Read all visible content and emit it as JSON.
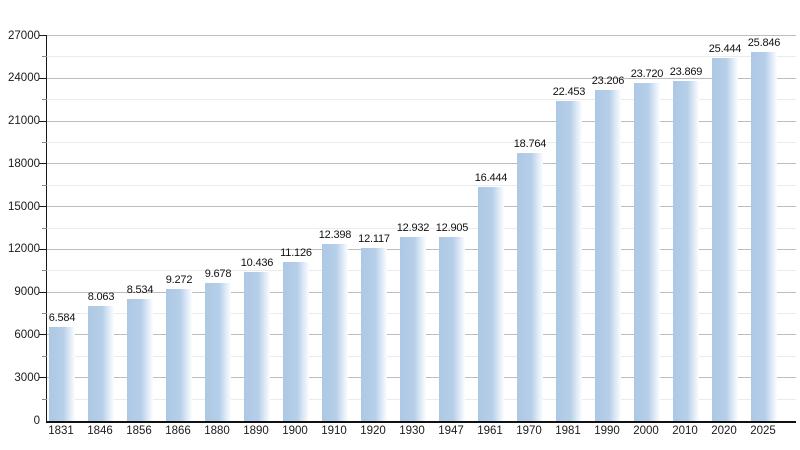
{
  "chart_data": {
    "type": "bar",
    "title": "",
    "xlabel": "",
    "ylabel": "",
    "legend": "none",
    "grid": "horizontal major every 3000, minor every 1500",
    "ylim": [
      0,
      27000
    ],
    "ytick_step": 3000,
    "ytick_labels": [
      "0",
      "3000",
      "6000",
      "9000",
      "12000",
      "15000",
      "18000",
      "21000",
      "24000",
      "27000"
    ],
    "categories": [
      "1831",
      "1846",
      "1856",
      "1866",
      "1880",
      "1890",
      "1900",
      "1910",
      "1920",
      "1930",
      "1947",
      "1961",
      "1970",
      "1981",
      "1990",
      "2000",
      "2010",
      "2020",
      "2025"
    ],
    "values": [
      6584,
      8063,
      8534,
      9272,
      9678,
      10436,
      11126,
      12398,
      12117,
      12932,
      12905,
      16444,
      18764,
      22453,
      23206,
      23720,
      23869,
      25444,
      25846
    ],
    "value_labels": [
      "6.584",
      "8.063",
      "8.534",
      "9.272",
      "9.678",
      "10.436",
      "11.126",
      "12.398",
      "12.117",
      "12.932",
      "12.905",
      "16.444",
      "18.764",
      "22.453",
      "23.206",
      "23.720",
      "23.869",
      "25.444",
      "25.846"
    ],
    "colors": {
      "bar_fill_start": "#adc8e5",
      "bar_fill_mid": "#b6cfe9",
      "bar_fill_fade": "#eaf2fa",
      "bar_fill_end": "#fcfdff",
      "major_gridline": "#bdbdbd",
      "minor_gridline": "#ebebeb",
      "axis": "#111111",
      "text": "#1b1b1b",
      "background": "#ffffff"
    }
  }
}
